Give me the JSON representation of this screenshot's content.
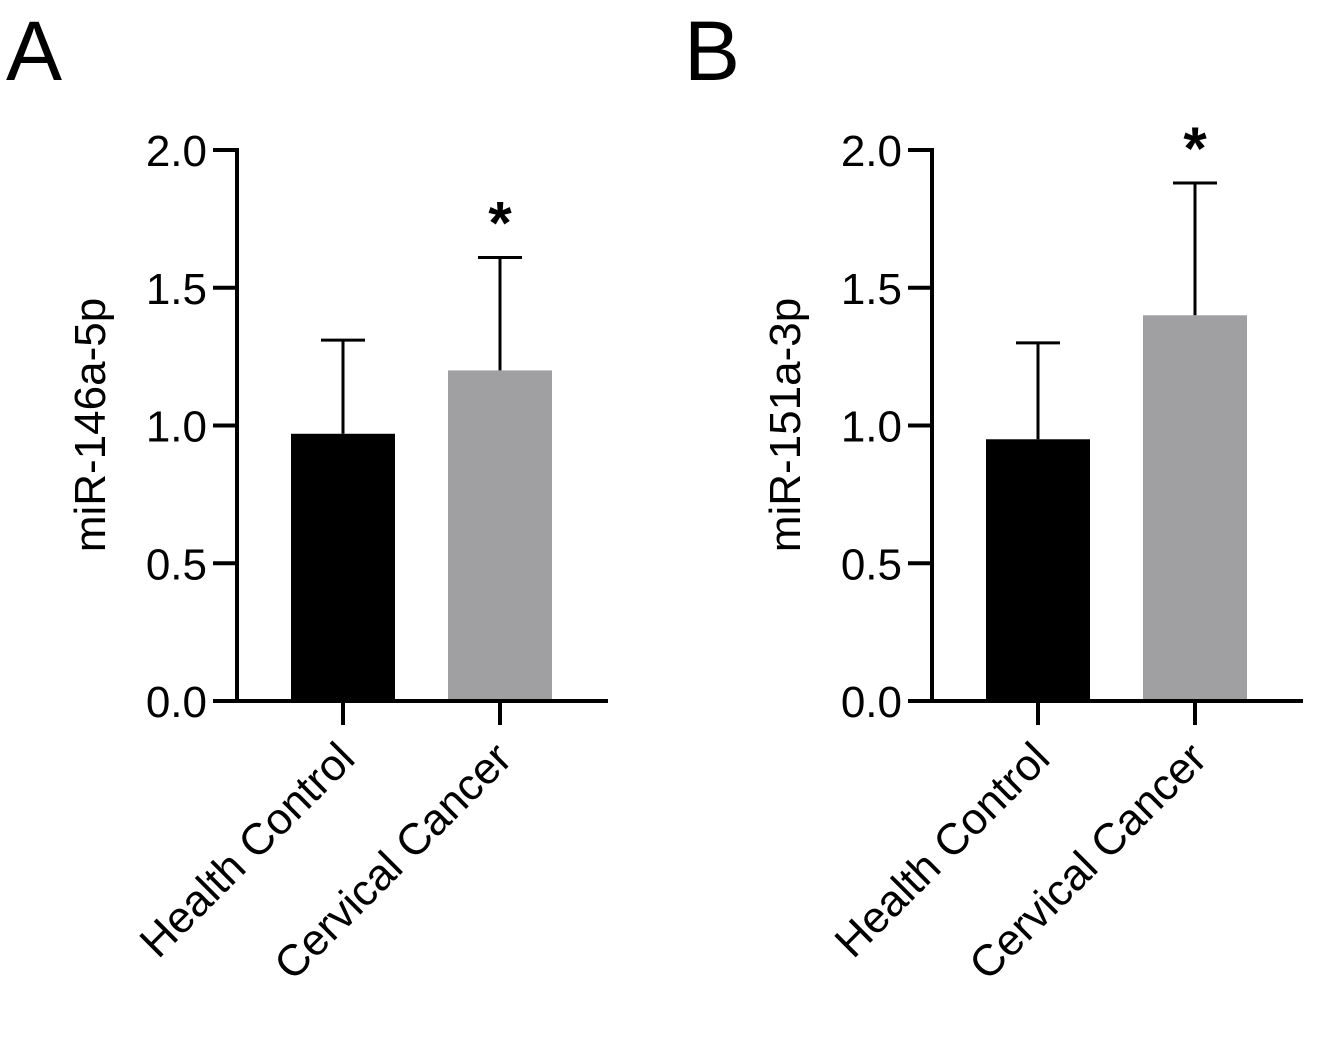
{
  "figure": {
    "panels": [
      "A",
      "B"
    ]
  },
  "chart_data": [
    {
      "panel": "A",
      "type": "bar",
      "title": "",
      "xlabel": "",
      "ylabel": "miR-146a-5p",
      "ylim": [
        0,
        2.0
      ],
      "yticks": [
        "0.0",
        "0.5",
        "1.0",
        "1.5",
        "2.0"
      ],
      "categories": [
        "Health Control",
        "Cervical Cancer"
      ],
      "values": [
        0.97,
        1.2
      ],
      "error_upper": [
        1.31,
        1.61
      ],
      "colors": [
        "#000000",
        "#a0a0a2"
      ],
      "annotations": [
        {
          "category": "Cervical Cancer",
          "text": "*"
        }
      ],
      "grid": false,
      "legend": "none"
    },
    {
      "panel": "B",
      "type": "bar",
      "title": "",
      "xlabel": "",
      "ylabel": "miR-151a-3p",
      "ylim": [
        0,
        2.0
      ],
      "yticks": [
        "0.0",
        "0.5",
        "1.0",
        "1.5",
        "2.0"
      ],
      "categories": [
        "Health Control",
        "Cervical Cancer"
      ],
      "values": [
        0.95,
        1.4
      ],
      "error_upper": [
        1.3,
        1.88
      ],
      "colors": [
        "#000000",
        "#a0a0a2"
      ],
      "annotations": [
        {
          "category": "Cervical Cancer",
          "text": "*"
        }
      ],
      "grid": false,
      "legend": "none"
    }
  ]
}
